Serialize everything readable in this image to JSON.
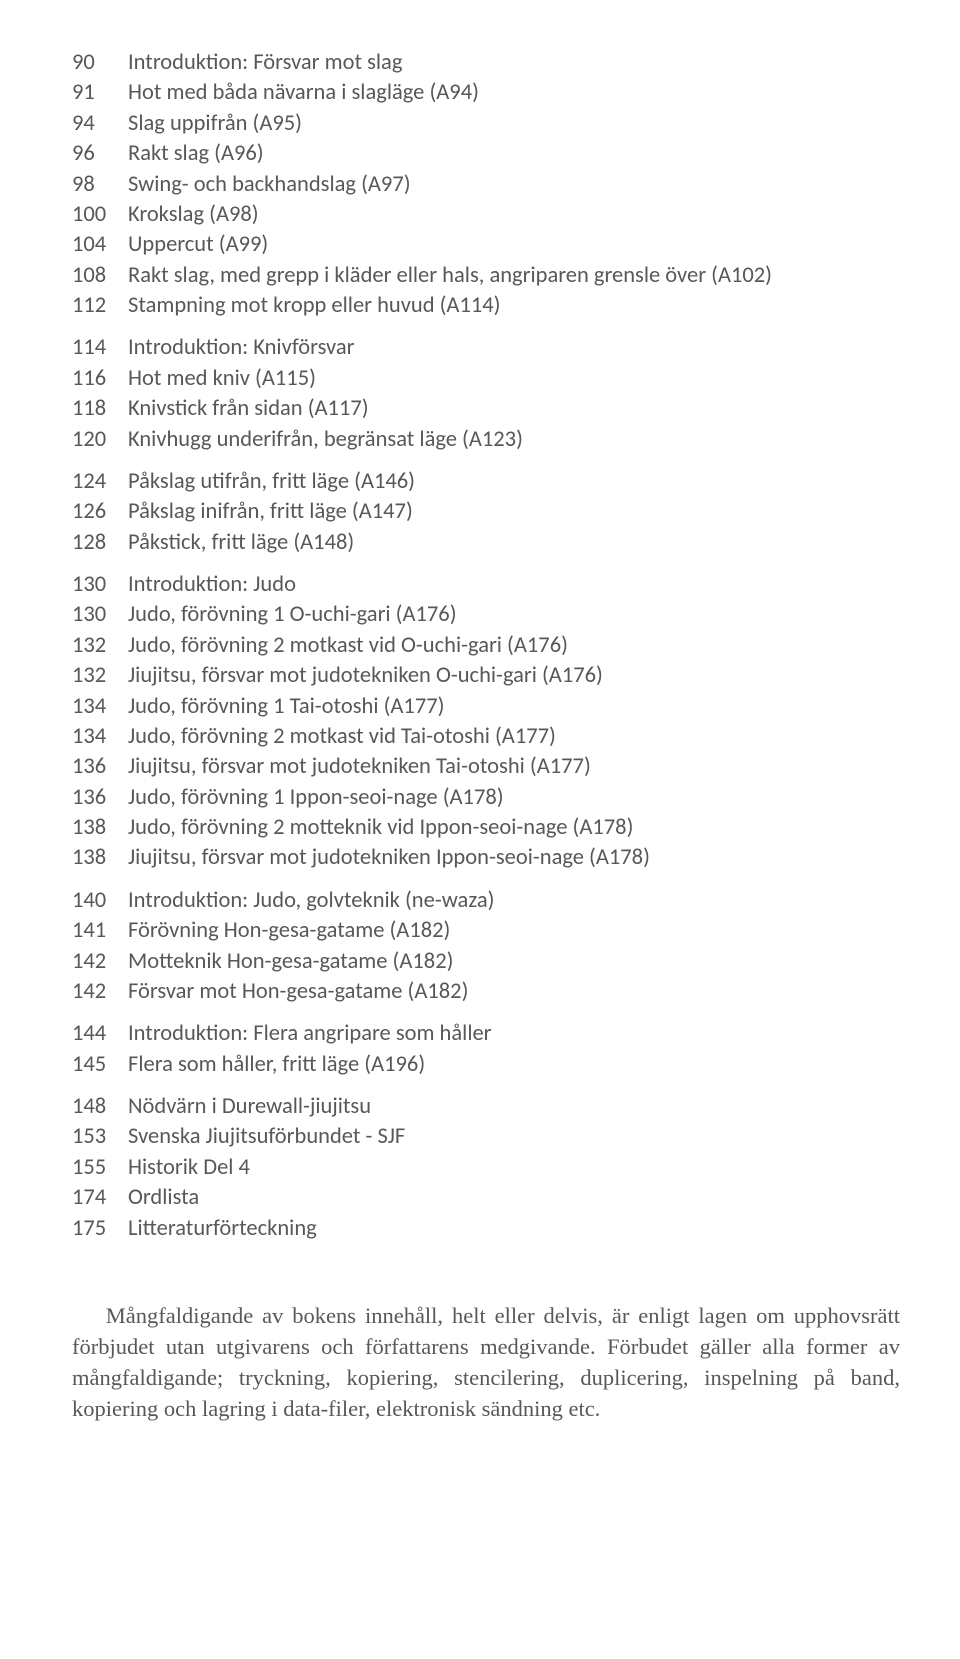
{
  "text_color": "#58585a",
  "background_color": "#ffffff",
  "toc_fontsize": 22.5,
  "copyright_fontsize": 22.5,
  "toc": [
    [
      {
        "num": "90",
        "text": "Introduktion: Försvar mot slag"
      },
      {
        "num": "91",
        "text": "Hot med båda nävarna i slagläge (A94)"
      },
      {
        "num": "94",
        "text": "Slag uppifrån (A95)"
      },
      {
        "num": "96",
        "text": "Rakt slag (A96)"
      },
      {
        "num": "98",
        "text": "Swing- och backhandslag (A97)"
      },
      {
        "num": "100",
        "text": "Krokslag (A98)"
      },
      {
        "num": "104",
        "text": "Uppercut (A99)"
      },
      {
        "num": "108",
        "text": "Rakt slag, med grepp i kläder eller hals, angriparen grensle över (A102)"
      },
      {
        "num": "112",
        "text": "Stampning mot kropp eller huvud (A114)"
      }
    ],
    [
      {
        "num": "114",
        "text": "Introduktion: Knivförsvar"
      },
      {
        "num": "116",
        "text": "Hot med kniv (A115)"
      },
      {
        "num": "118",
        "text": "Knivstick från sidan (A117)"
      },
      {
        "num": "120",
        "text": "Knivhugg underifrån, begränsat läge (A123)"
      }
    ],
    [
      {
        "num": "124",
        "text": "Påkslag utifrån, fritt läge (A146)"
      },
      {
        "num": "126",
        "text": "Påkslag inifrån, fritt läge (A147)"
      },
      {
        "num": "128",
        "text": "Påkstick, fritt läge (A148)"
      }
    ],
    [
      {
        "num": "130",
        "text": "Introduktion: Judo"
      },
      {
        "num": "130",
        "text": "Judo, förövning 1 O-uchi-gari (A176)"
      },
      {
        "num": "132",
        "text": "Judo, förövning 2 motkast vid O-uchi-gari (A176)"
      },
      {
        "num": "132",
        "text": "Jiujitsu, försvar mot judotekniken O-uchi-gari (A176)"
      },
      {
        "num": "134",
        "text": "Judo, förövning 1 Tai-otoshi (A177)"
      },
      {
        "num": "134",
        "text": "Judo, förövning 2 motkast vid Tai-otoshi (A177)"
      },
      {
        "num": "136",
        "text": "Jiujitsu, försvar mot judotekniken Tai-otoshi (A177)"
      },
      {
        "num": "136",
        "text": "Judo, förövning 1 Ippon-seoi-nage (A178)"
      },
      {
        "num": "138",
        "text": "Judo, förövning 2 motteknik vid Ippon-seoi-nage (A178)"
      },
      {
        "num": "138",
        "text": "Jiujitsu, försvar mot judotekniken Ippon-seoi-nage (A178)"
      }
    ],
    [
      {
        "num": "140",
        "text": "Introduktion: Judo, golvteknik (ne-waza)"
      },
      {
        "num": "141",
        "text": "Förövning Hon-gesa-gatame (A182)"
      },
      {
        "num": "142",
        "text": "Motteknik Hon-gesa-gatame (A182)"
      },
      {
        "num": "142",
        "text": "Försvar mot Hon-gesa-gatame (A182)"
      }
    ],
    [
      {
        "num": "144",
        "text": "Introduktion: Flera angripare som håller"
      },
      {
        "num": "145",
        "text": "Flera som håller, fritt läge (A196)"
      }
    ],
    [
      {
        "num": "148",
        "text": "Nödvärn i Durewall-jiujitsu"
      },
      {
        "num": "153",
        "text": "Svenska Jiujitsuförbundet - SJF"
      },
      {
        "num": "155",
        "text": "Historik Del 4"
      },
      {
        "num": "174",
        "text": "Ordlista"
      },
      {
        "num": "175",
        "text": "Litteraturförteckning"
      }
    ]
  ],
  "copyright": "Mångfaldigande av bokens innehåll, helt eller delvis, är enligt lagen om upphovsrätt förbjudet utan utgivarens och författarens medgivande. Förbudet gäller alla former av mångfaldigande; tryckning, kopiering, stencilering, duplicering, inspelning på band, kopiering och lagring i data-filer, elektronisk sändning etc."
}
